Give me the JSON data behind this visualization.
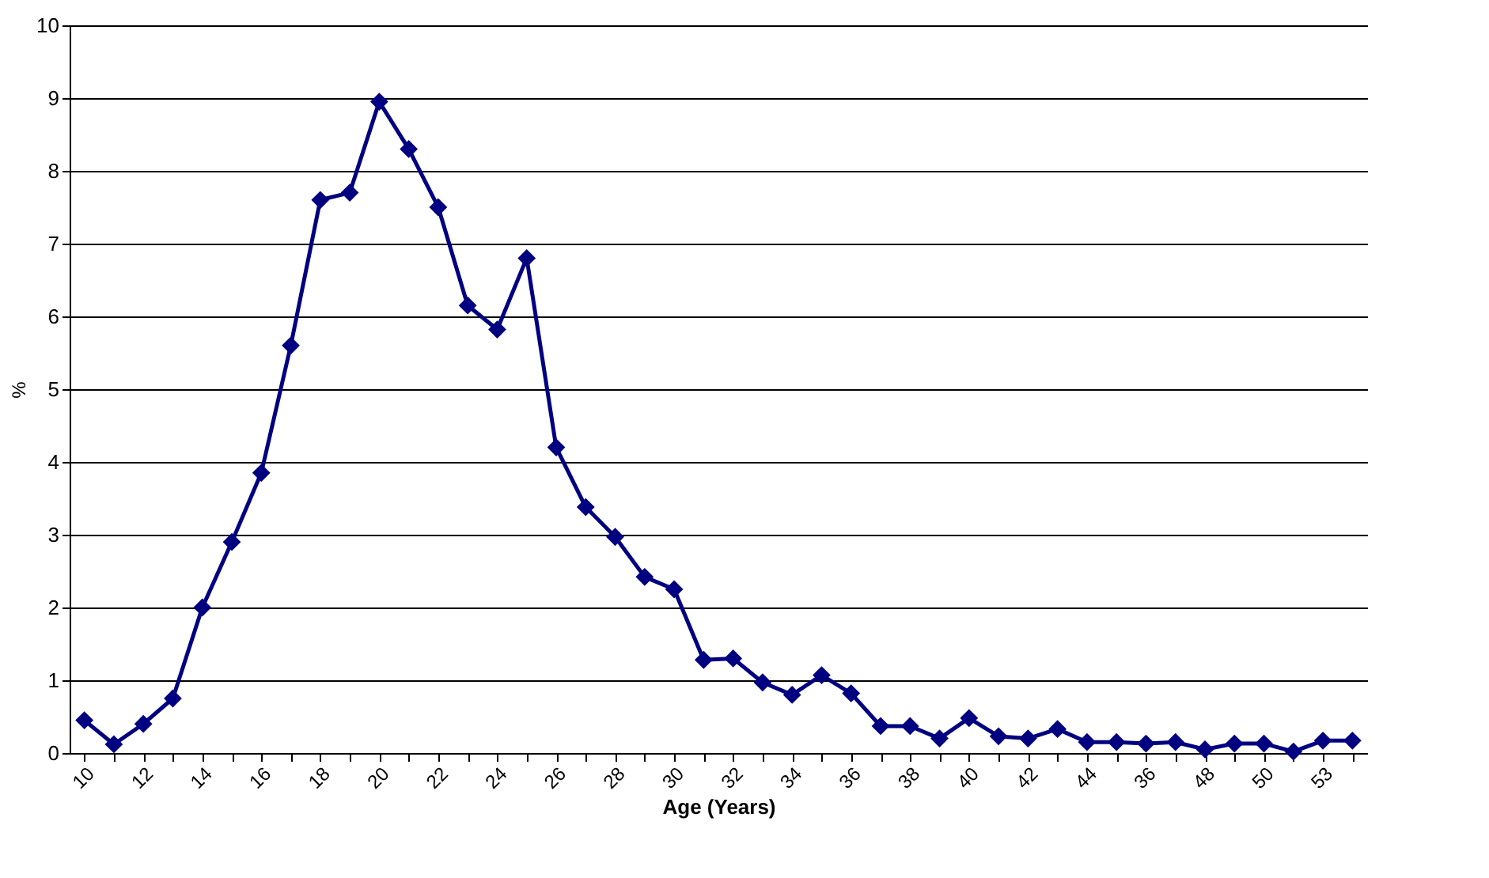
{
  "chart_data": {
    "type": "line",
    "xlabel": "Age (Years)",
    "ylabel": "%",
    "categories": [
      "10",
      null,
      "12",
      null,
      "14",
      null,
      "16",
      null,
      "18",
      null,
      "20",
      null,
      "22",
      null,
      "24",
      null,
      "26",
      null,
      "28",
      null,
      "30",
      null,
      "32",
      null,
      "34",
      null,
      "36",
      null,
      "38",
      null,
      "40",
      null,
      "42",
      null,
      "44",
      null,
      "36",
      null,
      "48",
      null,
      "50",
      null,
      "53",
      null
    ],
    "series": [
      {
        "color": "#000080",
        "values": [
          0.45,
          0.12,
          0.4,
          0.75,
          2.0,
          2.9,
          3.85,
          5.6,
          7.6,
          7.7,
          8.95,
          8.3,
          7.5,
          6.15,
          5.82,
          6.8,
          4.2,
          3.38,
          2.97,
          2.42,
          2.25,
          1.28,
          1.3,
          0.97,
          0.8,
          1.07,
          0.82,
          0.37,
          0.37,
          0.2,
          0.48,
          0.23,
          0.2,
          0.33,
          0.15,
          0.15,
          0.13,
          0.15,
          0.05,
          0.13,
          0.13,
          0.02,
          0.17,
          0.17
        ]
      }
    ],
    "ylim": [
      0,
      10
    ],
    "yticks": [
      0,
      1,
      2,
      3,
      4,
      5,
      6,
      7,
      8,
      9,
      10
    ],
    "grid": "y",
    "marker": "diamond",
    "line_style": "solid"
  }
}
